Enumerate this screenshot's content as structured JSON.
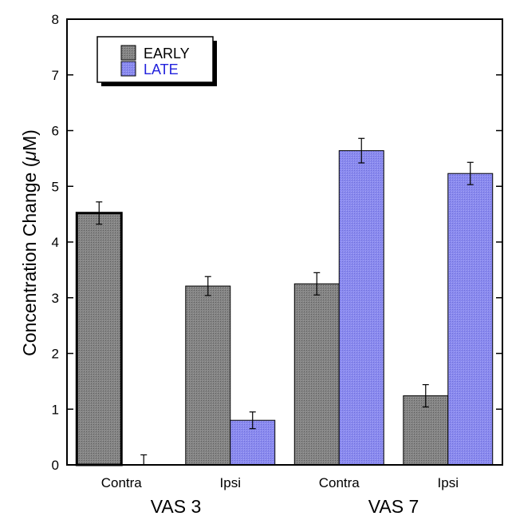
{
  "chart_data": {
    "type": "bar",
    "ylabel_prefix": "Concentration Change (",
    "ylabel_mu": "μ",
    "ylabel_suffix": "M)",
    "ylim": [
      0,
      8
    ],
    "yticks": [
      "0",
      "1",
      "2",
      "3",
      "4",
      "5",
      "6",
      "7",
      "8"
    ],
    "categories": [
      "Contra",
      "Ipsi",
      "Contra",
      "Ipsi"
    ],
    "groups": [
      "VAS 3",
      "VAS 7"
    ],
    "series": [
      {
        "name": "EARLY",
        "values": [
          4.52,
          3.21,
          3.25,
          1.24
        ],
        "errors": [
          0.2,
          0.17,
          0.2,
          0.2
        ],
        "color": "#7f7f7f"
      },
      {
        "name": "LATE",
        "values": [
          0.0,
          0.8,
          5.64,
          5.23
        ],
        "errors": [
          0.18,
          0.15,
          0.22,
          0.2
        ],
        "color": "#8888ee"
      }
    ],
    "legend_text_colors": [
      "#000000",
      "#2222dd"
    ],
    "legend_position": "top-left",
    "grid": false
  }
}
